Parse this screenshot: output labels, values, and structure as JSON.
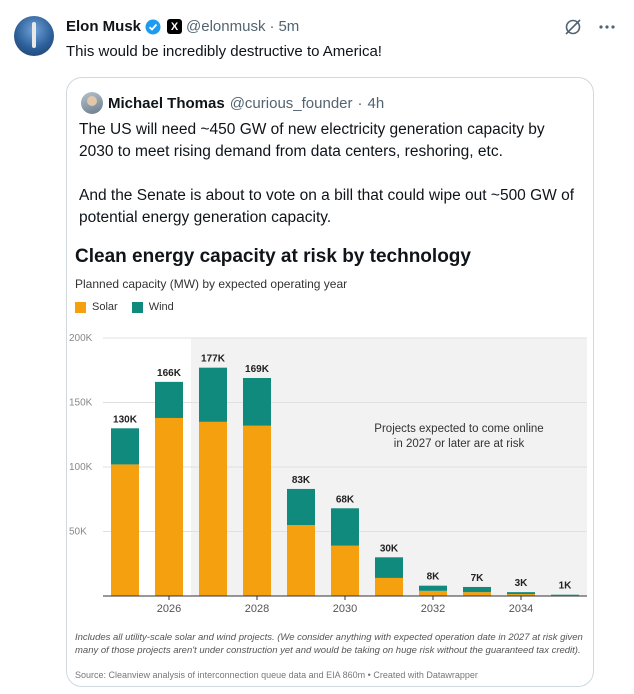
{
  "tweet": {
    "author_name": "Elon Musk",
    "handle": "@elonmusk",
    "separator": "·",
    "time": "5m",
    "text": "This would be incredibly destructive to America!"
  },
  "quote": {
    "author_name": "Michael Thomas",
    "handle": "@curious_founder",
    "separator": "·",
    "time": "4h",
    "paragraph1": "The US will need ~450 GW of new electricity generation capacity by 2030 to meet rising demand from data centers, reshoring, etc.",
    "paragraph2": "And the Senate is about to vote on a bill that could wipe out ~500 GW of potential energy generation capacity."
  },
  "chart_data": {
    "type": "bar",
    "stacked": true,
    "title": "Clean energy capacity at risk by technology",
    "subtitle": "Planned capacity (MW) by expected operating year",
    "categories": [
      "2025",
      "2026",
      "2027",
      "2028",
      "2029",
      "2030",
      "2031",
      "2032",
      "2033",
      "2034",
      "2035"
    ],
    "x_tick_labels": [
      "2026",
      "2028",
      "2030",
      "2032",
      "2034"
    ],
    "series": [
      {
        "name": "Solar",
        "color": "#f5a00e",
        "values": [
          102000,
          138000,
          135000,
          132000,
          55000,
          39000,
          14000,
          4000,
          3000,
          1500,
          500
        ]
      },
      {
        "name": "Wind",
        "color": "#118a7e",
        "values": [
          28000,
          28000,
          42000,
          37000,
          28000,
          29000,
          16000,
          4000,
          4000,
          1500,
          500
        ]
      }
    ],
    "data_labels": [
      "130K",
      "166K",
      "177K",
      "169K",
      "83K",
      "68K",
      "30K",
      "8K",
      "7K",
      "3K",
      "1K"
    ],
    "y_ticks": [
      "50K",
      "100K",
      "150K",
      "200K"
    ],
    "ylim": [
      0,
      200000
    ],
    "annotation_line1": "Projects expected to come online",
    "annotation_line2": "in 2027 or later are at risk",
    "shaded_from": "2027",
    "footnote": "Includes all utility-scale solar and wind projects. (We consider anything with expected operation date in 2027 at risk given many of those projects aren't under construction yet and would be taking on huge risk without the guaranteed tax credit).",
    "source": "Source: Cleanview analysis of interconnection queue data and EIA 860m • Created with Datawrapper"
  }
}
